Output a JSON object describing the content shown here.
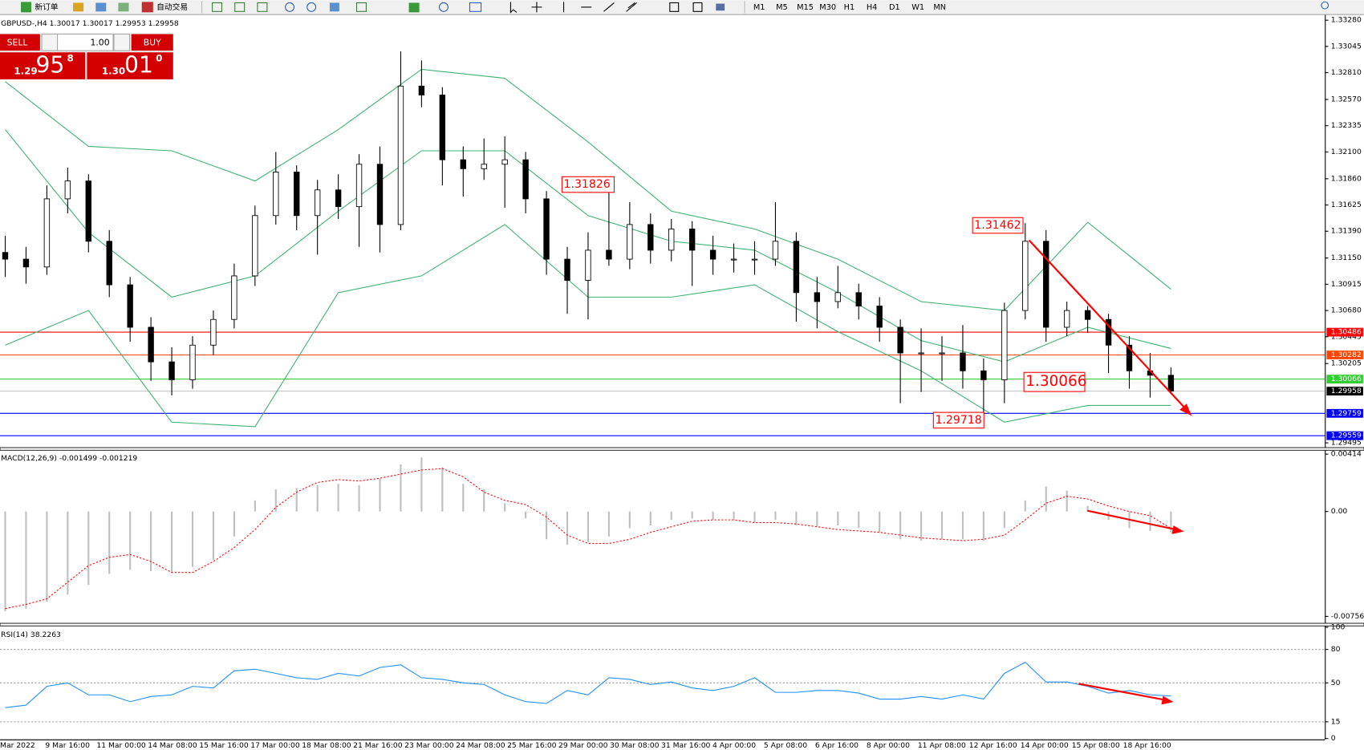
{
  "toolbar": {
    "new_order": "新订单",
    "auto_trading": "自动交易",
    "timeframes": [
      "M1",
      "M5",
      "M15",
      "M30",
      "H1",
      "H4",
      "D1",
      "W1",
      "MN"
    ]
  },
  "trade_panel": {
    "sell": "SELL",
    "buy": "BUY",
    "lot": "1.00",
    "bid": {
      "big": "1.29",
      "pips": "95",
      "frac": "8"
    },
    "ask": {
      "big": "1.30",
      "pips": "01",
      "frac": "0"
    }
  },
  "chart_data": [
    {
      "type": "candlestick",
      "title": "GBPUSD-,H4 1.30017 1.30017 1.29953 1.29958",
      "ylim": [
        1.29456,
        1.33319
      ],
      "yticks": [
        {
          "value": 1.3328,
          "label": "1.33280"
        },
        1.33045,
        {
          "value": 1.3281,
          "label": "1.32810"
        },
        {
          "value": 1.3257,
          "label": "1.32570"
        },
        1.32335,
        {
          "value": 1.321,
          "label": "1.32100"
        },
        {
          "value": 1.3186,
          "label": "1.31860"
        },
        1.31625,
        {
          "value": 1.3139,
          "label": "1.31390"
        },
        {
          "value": 1.3115,
          "label": "1.31150"
        },
        1.30915,
        {
          "value": 1.3068,
          "label": "1.30680"
        },
        1.30445,
        1.30205,
        1.29495
      ],
      "time_axis": [
        "Mar 2022",
        "9 Mar 16:00",
        "11 Mar 00:00",
        "14 Mar 08:00",
        "15 Mar 16:00",
        "17 Mar 00:00",
        "18 Mar 08:00",
        "21 Mar 16:00",
        "23 Mar 00:00",
        "24 Mar 08:00",
        "25 Mar 16:00",
        "29 Mar 00:00",
        "30 Mar 08:00",
        "31 Mar 16:00",
        "4 Apr 00:00",
        "5 Apr 08:00",
        "6 Apr 16:00",
        "8 Apr 00:00",
        "11 Apr 08:00",
        "12 Apr 16:00",
        "14 Apr 00:00",
        "15 Apr 08:00",
        "18 Apr 16:00"
      ],
      "ohlc": [
        [
          1.312,
          1.3135,
          1.3098,
          1.3114
        ],
        [
          1.3114,
          1.3125,
          1.3092,
          1.3107
        ],
        [
          1.3107,
          1.318,
          1.31,
          1.3168
        ],
        [
          1.3168,
          1.3196,
          1.3155,
          1.3184
        ],
        [
          1.3184,
          1.319,
          1.312,
          1.313
        ],
        [
          1.313,
          1.314,
          1.308,
          1.3091
        ],
        [
          1.3091,
          1.3098,
          1.304,
          1.3053
        ],
        [
          1.3053,
          1.3062,
          1.3005,
          1.3022
        ],
        [
          1.3022,
          1.3035,
          1.2992,
          1.3006
        ],
        [
          1.3006,
          1.3045,
          1.2998,
          1.3037
        ],
        [
          1.3037,
          1.3068,
          1.3028,
          1.306
        ],
        [
          1.306,
          1.311,
          1.3052,
          1.3099
        ],
        [
          1.3099,
          1.3162,
          1.309,
          1.3153
        ],
        [
          1.3153,
          1.321,
          1.3145,
          1.3192
        ],
        [
          1.3192,
          1.3198,
          1.314,
          1.3153
        ],
        [
          1.3153,
          1.3185,
          1.3118,
          1.3176
        ],
        [
          1.3176,
          1.319,
          1.315,
          1.3161
        ],
        [
          1.3161,
          1.3208,
          1.3125,
          1.3199
        ],
        [
          1.3199,
          1.3215,
          1.312,
          1.3145
        ],
        [
          1.3145,
          1.33,
          1.314,
          1.3269
        ],
        [
          1.3269,
          1.3292,
          1.325,
          1.3261
        ],
        [
          1.3261,
          1.3268,
          1.318,
          1.3203
        ],
        [
          1.3203,
          1.3215,
          1.317,
          1.3195
        ],
        [
          1.3195,
          1.3222,
          1.3185,
          1.3199
        ],
        [
          1.3199,
          1.3224,
          1.316,
          1.3203
        ],
        [
          1.3203,
          1.321,
          1.3155,
          1.3168
        ],
        [
          1.3168,
          1.3175,
          1.31,
          1.3114
        ],
        [
          1.3114,
          1.3125,
          1.3065,
          1.3095
        ],
        [
          1.3095,
          1.3138,
          1.306,
          1.3122
        ],
        [
          1.3122,
          1.31826,
          1.3108,
          1.3114
        ],
        [
          1.3114,
          1.3165,
          1.3105,
          1.3145
        ],
        [
          1.3145,
          1.3155,
          1.311,
          1.3122
        ],
        [
          1.3122,
          1.315,
          1.3112,
          1.3141
        ],
        [
          1.3141,
          1.3148,
          1.309,
          1.3122
        ],
        [
          1.3122,
          1.3135,
          1.31,
          1.3114
        ],
        [
          1.3114,
          1.3128,
          1.3102,
          1.3114
        ],
        [
          1.3114,
          1.313,
          1.31,
          1.3114
        ],
        [
          1.3114,
          1.3165,
          1.3108,
          1.313
        ],
        [
          1.313,
          1.3138,
          1.3058,
          1.3084
        ],
        [
          1.3084,
          1.3098,
          1.3052,
          1.3076
        ],
        [
          1.3076,
          1.3108,
          1.307,
          1.3084
        ],
        [
          1.3084,
          1.3092,
          1.306,
          1.3072
        ],
        [
          1.3072,
          1.308,
          1.304,
          1.3053
        ],
        [
          1.3053,
          1.306,
          1.2985,
          1.303
        ],
        [
          1.303,
          1.3052,
          1.2995,
          1.303
        ],
        [
          1.303,
          1.3045,
          1.3005,
          1.303
        ],
        [
          1.303,
          1.3055,
          1.2998,
          1.3014
        ],
        [
          1.3014,
          1.3025,
          1.29718,
          1.3006
        ],
        [
          1.3006,
          1.3075,
          1.2985,
          1.3068
        ],
        [
          1.3068,
          1.31462,
          1.306,
          1.313
        ],
        [
          1.313,
          1.314,
          1.304,
          1.3053
        ],
        [
          1.3053,
          1.3076,
          1.3045,
          1.3068
        ],
        [
          1.3068,
          1.3072,
          1.3048,
          1.306
        ],
        [
          1.306,
          1.3065,
          1.3012,
          1.3037
        ],
        [
          1.3037,
          1.3045,
          1.2998,
          1.3014
        ],
        [
          1.3014,
          1.303,
          1.299,
          1.301
        ],
        [
          1.301,
          1.3017,
          1.2995,
          1.29958
        ]
      ],
      "band_x": [
        0,
        4,
        8,
        12,
        16,
        20,
        24,
        28,
        32,
        36,
        40,
        44,
        48,
        52,
        56
      ],
      "bands": [
        {
          "color": "#3cb371",
          "values": [
            1.3273,
            1.3215,
            1.3211,
            1.3184,
            1.323,
            1.3284,
            1.3276,
            1.3219,
            1.3157,
            1.3141,
            1.3114,
            1.3076,
            1.3068,
            1.3147,
            1.3087
          ]
        },
        {
          "color": "#3cb371",
          "values": [
            1.323,
            1.3138,
            1.308,
            1.3099,
            1.3157,
            1.3211,
            1.3211,
            1.3153,
            1.313,
            1.3122,
            1.3084,
            1.3041,
            1.3022,
            1.3053,
            1.3034
          ]
        },
        {
          "color": "#3cb371",
          "values": [
            1.3037,
            1.3068,
            1.2968,
            1.2964,
            1.3084,
            1.3099,
            1.3145,
            1.308,
            1.308,
            1.3091,
            1.3049,
            1.3014,
            1.2968,
            1.2983,
            1.2983
          ]
        }
      ],
      "levels": [
        {
          "value": 1.30486,
          "color": "#ff0000",
          "label_color": "#ff0000"
        },
        {
          "value": 1.30282,
          "color": "#ff4500",
          "label_color": "#ff4500"
        },
        {
          "value": 1.30066,
          "color": "#32cd32",
          "label_color": "#32cd32"
        },
        {
          "value": 1.29958,
          "color": "#c0c0c0",
          "label_color": "#000000"
        },
        {
          "value": 1.29759,
          "color": "#0000ff",
          "label_color": "#0000ff"
        },
        {
          "value": 1.29559,
          "color": "#0000ff",
          "label_color": "#0000ff"
        }
      ],
      "annotations": [
        "1.31826",
        "1.31462",
        "1.30066",
        "1.29718"
      ]
    },
    {
      "type": "macd",
      "title": "MACD(12,26,9) -0.001499 -0.001219",
      "ylim": [
        -0.00803,
        0.00439
      ],
      "yticks": [
        0.00414,
        {
          "value": 0,
          "label": "0.00"
        },
        -0.007564
      ],
      "series": [
        {
          "style": "histogram",
          "color": "#c0c0c0",
          "values": [
            -0.0072,
            -0.007,
            -0.0065,
            -0.006,
            -0.0053,
            -0.0045,
            -0.0042,
            -0.0043,
            -0.0044,
            -0.004,
            -0.0035,
            -0.0018,
            0.0008,
            0.0016,
            0.0017,
            0.0019,
            0.002,
            0.0019,
            0.0024,
            0.0034,
            0.0039,
            0.0032,
            0.002,
            0.0016,
            0.0006,
            -0.0005,
            -0.002,
            -0.0024,
            -0.0022,
            -0.0018,
            -0.0012,
            -0.001,
            -0.0006,
            -0.0005,
            -0.0006,
            -0.0006,
            -0.0008,
            -0.0006,
            -0.001,
            -0.0011,
            -0.001,
            -0.0012,
            -0.0015,
            -0.002,
            -0.0021,
            -0.002,
            -0.002,
            -0.0021,
            -0.0012,
            0.0008,
            0.0018,
            0.0015,
            0.0004,
            -0.0006,
            -0.0012,
            -0.0014,
            -0.001499
          ]
        },
        {
          "style": "dotted",
          "color": "#ff0000",
          "values": [
            -0.007,
            -0.0067,
            -0.0063,
            -0.0051,
            -0.0039,
            -0.0033,
            -0.0031,
            -0.0036,
            -0.0044,
            -0.0044,
            -0.0036,
            -0.0026,
            -0.0013,
            0.0003,
            0.0014,
            0.0021,
            0.0023,
            0.0022,
            0.0024,
            0.0027,
            0.003,
            0.0031,
            0.0025,
            0.0014,
            0.0008,
            0.0005,
            -0.0004,
            -0.0017,
            -0.0023,
            -0.0023,
            -0.002,
            -0.0015,
            -0.0011,
            -0.0007,
            -0.0006,
            -0.0006,
            -0.0008,
            -0.0008,
            -0.0009,
            -0.0011,
            -0.0013,
            -0.0014,
            -0.0015,
            -0.0017,
            -0.0019,
            -0.002,
            -0.0021,
            -0.002,
            -0.0017,
            -0.0006,
            0.0006,
            0.0011,
            0.0009,
            0.0004,
            0,
            -0.0003,
            -0.001219
          ]
        }
      ]
    },
    {
      "type": "rsi",
      "title": "RSI(14) 38.2263",
      "ylim": [
        0,
        100
      ],
      "yticks": [
        100,
        80,
        50,
        15,
        0
      ],
      "grid": true,
      "series": [
        {
          "color": "#1e90ff",
          "values": [
            27.7,
            30,
            46.9,
            50,
            39.2,
            39.2,
            33.1,
            37.7,
            39.2,
            46.9,
            45.4,
            60.8,
            62.3,
            58.5,
            54.6,
            53.1,
            58.5,
            56.2,
            63.8,
            66.2,
            54.6,
            53.1,
            50,
            48.5,
            39.2,
            33.1,
            31.5,
            43.1,
            39.2,
            54.6,
            53.1,
            48.5,
            50.8,
            45.4,
            43.1,
            46.9,
            54.6,
            41.5,
            41.5,
            43.1,
            43.1,
            40.8,
            35.4,
            35.4,
            37.7,
            35.4,
            39.2,
            35.4,
            58.5,
            68.5,
            50.8,
            50.8,
            46.9,
            40.8,
            43.1,
            39.2,
            38.2263
          ]
        }
      ]
    }
  ]
}
